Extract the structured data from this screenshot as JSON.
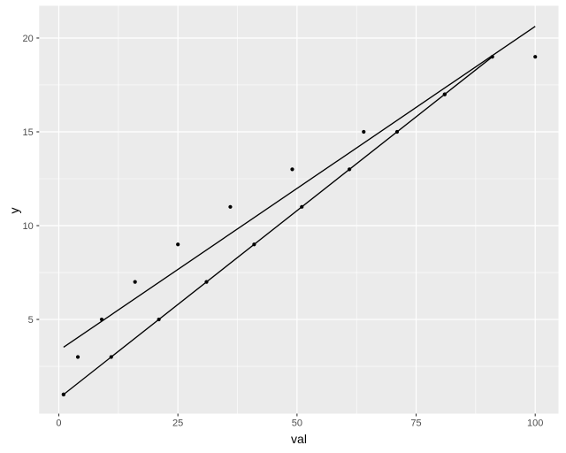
{
  "chart_data": {
    "type": "scatter",
    "title": "",
    "xlabel": "val",
    "ylabel": "y",
    "x_ticks": [
      0,
      25,
      50,
      75,
      100
    ],
    "y_ticks": [
      5,
      10,
      15,
      20
    ],
    "x_minor_ticks": [
      12.5,
      37.5,
      62.5,
      87.5
    ],
    "y_minor_ticks": [
      2.5,
      7.5,
      12.5,
      17.5
    ],
    "xlim": [
      -4.12,
      104.88
    ],
    "ylim": [
      -0.02,
      21.72
    ],
    "grid": "on",
    "legend": "none",
    "background_style": "ggplot-gray-panel",
    "series": [
      {
        "name": "series-linear-x",
        "marker": "point",
        "points": [
          [
            1,
            1
          ],
          [
            11,
            3
          ],
          [
            21,
            5
          ],
          [
            31,
            7
          ],
          [
            41,
            9
          ],
          [
            51,
            11
          ],
          [
            61,
            13
          ],
          [
            71,
            15
          ],
          [
            81,
            17
          ],
          [
            91,
            19
          ]
        ]
      },
      {
        "name": "series-square-x",
        "marker": "point",
        "points": [
          [
            1,
            1
          ],
          [
            4,
            3
          ],
          [
            9,
            5
          ],
          [
            16,
            7
          ],
          [
            25,
            9
          ],
          [
            36,
            11
          ],
          [
            49,
            13
          ],
          [
            64,
            15
          ],
          [
            81,
            17
          ],
          [
            100,
            19
          ]
        ]
      }
    ],
    "fit_lines": [
      {
        "name": "fit-line-linear",
        "from": [
          1,
          1
        ],
        "to": [
          91,
          19
        ]
      },
      {
        "name": "fit-line-square",
        "from": [
          1,
          3.52
        ],
        "to": [
          100,
          20.62
        ]
      }
    ]
  },
  "colors": {
    "panel_background": "#EBEBEB",
    "grid_major": "#FFFFFF",
    "grid_minor": "#FFFFFF",
    "point": "#000000",
    "fit_line": "#000000",
    "tick_label": "#4D4D4D",
    "axis_title": "#000000",
    "tick_mark": "#333333",
    "outer_background": "#FFFFFF"
  }
}
